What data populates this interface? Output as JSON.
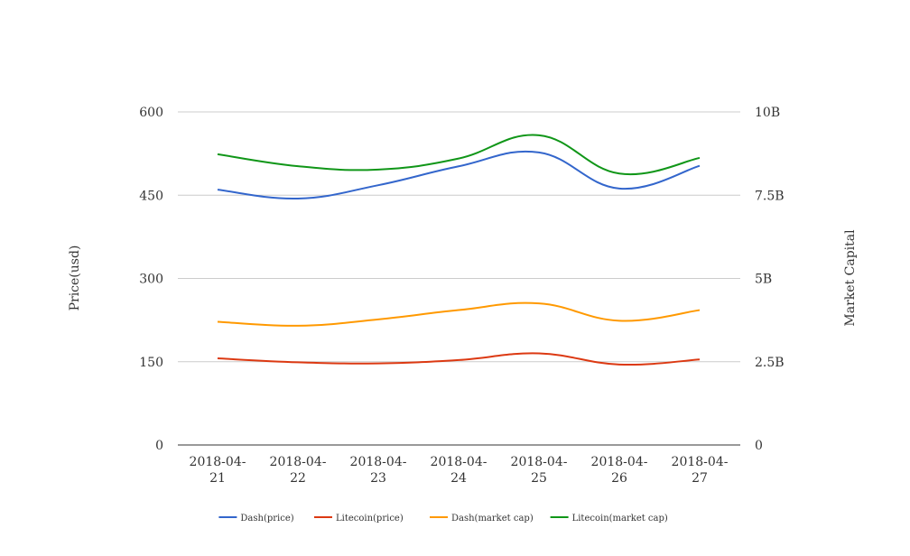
{
  "chart_data": {
    "type": "line",
    "categories": [
      "2018-04-21",
      "2018-04-22",
      "2018-04-23",
      "2018-04-24",
      "2018-04-25",
      "2018-04-26",
      "2018-04-27"
    ],
    "category_labels": [
      [
        "2018-04-",
        "21"
      ],
      [
        "2018-04-",
        "22"
      ],
      [
        "2018-04-",
        "23"
      ],
      [
        "2018-04-",
        "24"
      ],
      [
        "2018-04-",
        "25"
      ],
      [
        "2018-04-",
        "26"
      ],
      [
        "2018-04-",
        "27"
      ]
    ],
    "ylabel_left": "Price(usd)",
    "ylabel_right": "Market Capital",
    "ylim_left": [
      0,
      600
    ],
    "ylim_right": [
      0,
      10000000000
    ],
    "yticks_left": [
      "0",
      "150",
      "300",
      "450",
      "600"
    ],
    "yticks_right": [
      "0",
      "2.5B",
      "5B",
      "7.5B",
      "10B"
    ],
    "grid": true,
    "legend_position": "bottom",
    "series": [
      {
        "name": "Dash(price)",
        "axis": "left",
        "color": "#3366cc",
        "values": [
          460,
          444,
          468,
          502,
          527,
          462,
          503
        ]
      },
      {
        "name": "Litecoin(price)",
        "axis": "left",
        "color": "#dc3912",
        "values": [
          156,
          149,
          147,
          153,
          165,
          145,
          154
        ]
      },
      {
        "name": "Dash(market cap)",
        "axis": "right",
        "color": "#ff9900",
        "values": [
          3700000000,
          3580000000,
          3770000000,
          4050000000,
          4250000000,
          3730000000,
          4050000000
        ]
      },
      {
        "name": "Litecoin(market cap)",
        "axis": "right",
        "color": "#109618",
        "values": [
          8730000000,
          8370000000,
          8270000000,
          8600000000,
          9300000000,
          8150000000,
          8620000000
        ]
      }
    ]
  }
}
